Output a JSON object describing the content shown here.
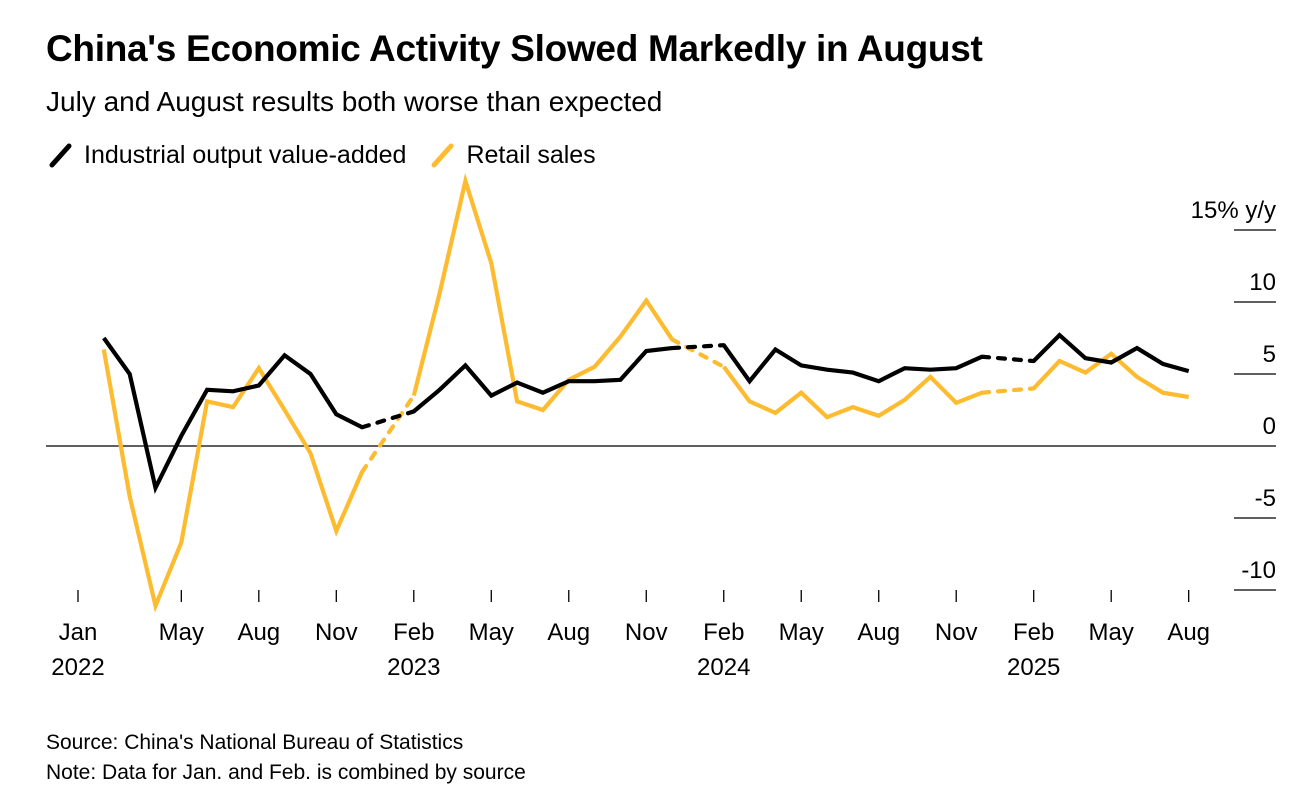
{
  "title": "China's Economic Activity Slowed Markedly in August",
  "subtitle": "July and August results both worse than expected",
  "legend": [
    {
      "name": "Industrial output value-added",
      "color": "#000000"
    },
    {
      "name": "Retail sales",
      "color": "#FDBB30"
    }
  ],
  "footer": {
    "source": "Source: China's National Bureau of Statistics",
    "note": "Note: Data for Jan. and Feb. is combined by source"
  },
  "chart_data": {
    "type": "line",
    "y_unit_label": "15% y/y",
    "ylim": [
      -10,
      15
    ],
    "y_ticks": [
      {
        "value": 15,
        "label": "15% y/y"
      },
      {
        "value": 10,
        "label": "10"
      },
      {
        "value": 5,
        "label": "5"
      },
      {
        "value": 0,
        "label": "0"
      },
      {
        "value": -5,
        "label": "-5"
      },
      {
        "value": -10,
        "label": "-10"
      }
    ],
    "x_ticks": [
      {
        "month": "2022-01",
        "label": "Jan",
        "year": "2022"
      },
      {
        "month": "2022-05",
        "label": "May"
      },
      {
        "month": "2022-08",
        "label": "Aug"
      },
      {
        "month": "2022-11",
        "label": "Nov"
      },
      {
        "month": "2023-02",
        "label": "Feb",
        "year": "2023"
      },
      {
        "month": "2023-05",
        "label": "May"
      },
      {
        "month": "2023-08",
        "label": "Aug"
      },
      {
        "month": "2023-11",
        "label": "Nov"
      },
      {
        "month": "2024-02",
        "label": "Feb",
        "year": "2024"
      },
      {
        "month": "2024-05",
        "label": "May"
      },
      {
        "month": "2024-08",
        "label": "Aug"
      },
      {
        "month": "2024-11",
        "label": "Nov"
      },
      {
        "month": "2025-02",
        "label": "Feb",
        "year": "2025"
      },
      {
        "month": "2025-05",
        "label": "May"
      },
      {
        "month": "2025-08",
        "label": "Aug"
      }
    ],
    "series": [
      {
        "name": "Industrial output value-added",
        "color": "#000000",
        "points": [
          [
            "2022-02",
            7.5
          ],
          [
            "2022-03",
            5.0
          ],
          [
            "2022-04",
            -2.9
          ],
          [
            "2022-05",
            0.7
          ],
          [
            "2022-06",
            3.9
          ],
          [
            "2022-07",
            3.8
          ],
          [
            "2022-08",
            4.2
          ],
          [
            "2022-09",
            6.3
          ],
          [
            "2022-10",
            5.0
          ],
          [
            "2022-11",
            2.2
          ],
          [
            "2022-12",
            1.3
          ],
          [
            "2023-02",
            2.4
          ],
          [
            "2023-03",
            3.9
          ],
          [
            "2023-04",
            5.6
          ],
          [
            "2023-05",
            3.5
          ],
          [
            "2023-06",
            4.4
          ],
          [
            "2023-07",
            3.7
          ],
          [
            "2023-08",
            4.5
          ],
          [
            "2023-09",
            4.5
          ],
          [
            "2023-10",
            4.6
          ],
          [
            "2023-11",
            6.6
          ],
          [
            "2023-12",
            6.8
          ],
          [
            "2024-02",
            7.0
          ],
          [
            "2024-03",
            4.5
          ],
          [
            "2024-04",
            6.7
          ],
          [
            "2024-05",
            5.6
          ],
          [
            "2024-06",
            5.3
          ],
          [
            "2024-07",
            5.1
          ],
          [
            "2024-08",
            4.5
          ],
          [
            "2024-09",
            5.4
          ],
          [
            "2024-10",
            5.3
          ],
          [
            "2024-11",
            5.4
          ],
          [
            "2024-12",
            6.2
          ],
          [
            "2025-02",
            5.9
          ],
          [
            "2025-03",
            7.7
          ],
          [
            "2025-04",
            6.1
          ],
          [
            "2025-05",
            5.8
          ],
          [
            "2025-06",
            6.8
          ],
          [
            "2025-07",
            5.7
          ],
          [
            "2025-08",
            5.2
          ]
        ]
      },
      {
        "name": "Retail sales",
        "color": "#FDBB30",
        "points": [
          [
            "2022-02",
            6.7
          ],
          [
            "2022-03",
            -3.5
          ],
          [
            "2022-04",
            -11.1
          ],
          [
            "2022-05",
            -6.7
          ],
          [
            "2022-06",
            3.1
          ],
          [
            "2022-07",
            2.7
          ],
          [
            "2022-08",
            5.4
          ],
          [
            "2022-09",
            2.5
          ],
          [
            "2022-10",
            -0.5
          ],
          [
            "2022-11",
            -5.9
          ],
          [
            "2022-12",
            -1.8
          ],
          [
            "2023-02",
            3.5
          ],
          [
            "2023-03",
            10.6
          ],
          [
            "2023-04",
            18.4
          ],
          [
            "2023-05",
            12.7
          ],
          [
            "2023-06",
            3.1
          ],
          [
            "2023-07",
            2.5
          ],
          [
            "2023-08",
            4.6
          ],
          [
            "2023-09",
            5.5
          ],
          [
            "2023-10",
            7.6
          ],
          [
            "2023-11",
            10.1
          ],
          [
            "2023-12",
            7.4
          ],
          [
            "2024-02",
            5.5
          ],
          [
            "2024-03",
            3.1
          ],
          [
            "2024-04",
            2.3
          ],
          [
            "2024-05",
            3.7
          ],
          [
            "2024-06",
            2.0
          ],
          [
            "2024-07",
            2.7
          ],
          [
            "2024-08",
            2.1
          ],
          [
            "2024-09",
            3.2
          ],
          [
            "2024-10",
            4.8
          ],
          [
            "2024-11",
            3.0
          ],
          [
            "2024-12",
            3.7
          ],
          [
            "2025-02",
            4.0
          ],
          [
            "2025-03",
            5.9
          ],
          [
            "2025-04",
            5.1
          ],
          [
            "2025-05",
            6.4
          ],
          [
            "2025-06",
            4.8
          ],
          [
            "2025-07",
            3.7
          ],
          [
            "2025-08",
            3.4
          ]
        ]
      }
    ]
  }
}
